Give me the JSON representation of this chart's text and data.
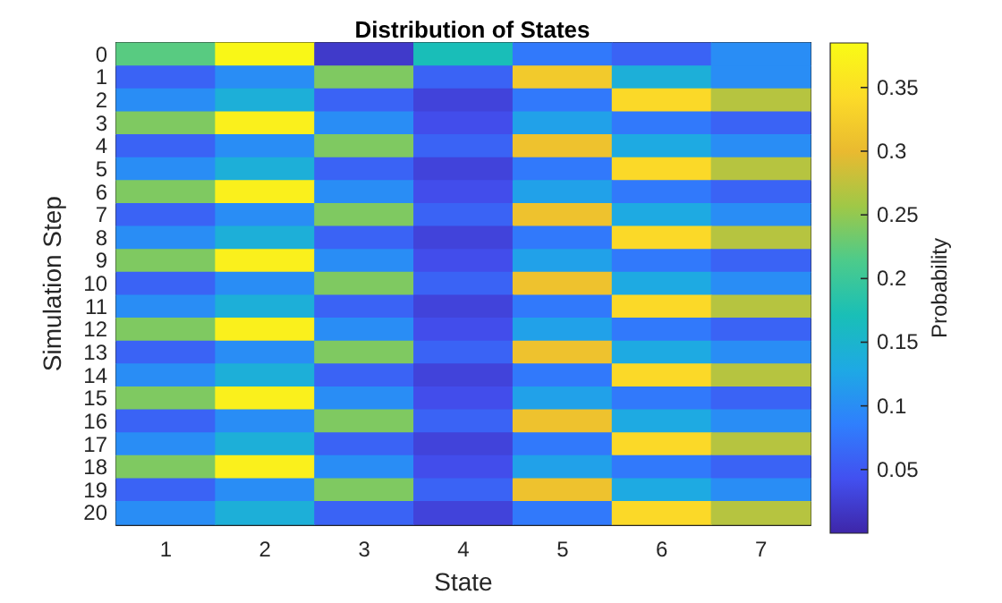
{
  "chart_data": {
    "type": "heatmap",
    "title": "Distribution of States",
    "xlabel": "State",
    "ylabel": "Simulation Step",
    "clabel": "Probability",
    "categories": [
      "1",
      "2",
      "3",
      "4",
      "5",
      "6",
      "7"
    ],
    "y_categories": [
      "0",
      "1",
      "2",
      "3",
      "4",
      "5",
      "6",
      "7",
      "8",
      "9",
      "10",
      "11",
      "12",
      "13",
      "14",
      "15",
      "16",
      "17",
      "18",
      "19",
      "20"
    ],
    "cells": [
      [
        0.22,
        0.38,
        0.02,
        0.17,
        0.08,
        0.06,
        0.1
      ],
      [
        0.06,
        0.1,
        0.24,
        0.06,
        0.32,
        0.14,
        0.1
      ],
      [
        0.1,
        0.14,
        0.06,
        0.03,
        0.08,
        0.34,
        0.27
      ],
      [
        0.24,
        0.37,
        0.1,
        0.04,
        0.12,
        0.08,
        0.06
      ],
      [
        0.06,
        0.1,
        0.24,
        0.06,
        0.31,
        0.13,
        0.1
      ],
      [
        0.1,
        0.14,
        0.06,
        0.03,
        0.08,
        0.34,
        0.27
      ],
      [
        0.24,
        0.37,
        0.1,
        0.04,
        0.12,
        0.08,
        0.06
      ],
      [
        0.06,
        0.1,
        0.24,
        0.06,
        0.31,
        0.13,
        0.1
      ],
      [
        0.1,
        0.14,
        0.06,
        0.03,
        0.08,
        0.34,
        0.27
      ],
      [
        0.24,
        0.37,
        0.1,
        0.04,
        0.12,
        0.08,
        0.06
      ],
      [
        0.06,
        0.1,
        0.24,
        0.06,
        0.31,
        0.13,
        0.1
      ],
      [
        0.1,
        0.14,
        0.06,
        0.03,
        0.08,
        0.34,
        0.27
      ],
      [
        0.24,
        0.37,
        0.1,
        0.04,
        0.12,
        0.08,
        0.06
      ],
      [
        0.06,
        0.1,
        0.24,
        0.06,
        0.31,
        0.13,
        0.1
      ],
      [
        0.1,
        0.14,
        0.06,
        0.03,
        0.08,
        0.34,
        0.27
      ],
      [
        0.24,
        0.37,
        0.1,
        0.04,
        0.12,
        0.08,
        0.06
      ],
      [
        0.06,
        0.1,
        0.24,
        0.06,
        0.31,
        0.13,
        0.1
      ],
      [
        0.1,
        0.14,
        0.06,
        0.03,
        0.08,
        0.34,
        0.27
      ],
      [
        0.24,
        0.37,
        0.1,
        0.04,
        0.12,
        0.08,
        0.06
      ],
      [
        0.06,
        0.1,
        0.24,
        0.06,
        0.31,
        0.13,
        0.1
      ],
      [
        0.1,
        0.14,
        0.06,
        0.03,
        0.08,
        0.34,
        0.27
      ]
    ],
    "clim": [
      0,
      0.385
    ],
    "cticks": [
      0.05,
      0.1,
      0.15,
      0.2,
      0.25,
      0.3,
      0.35
    ]
  }
}
